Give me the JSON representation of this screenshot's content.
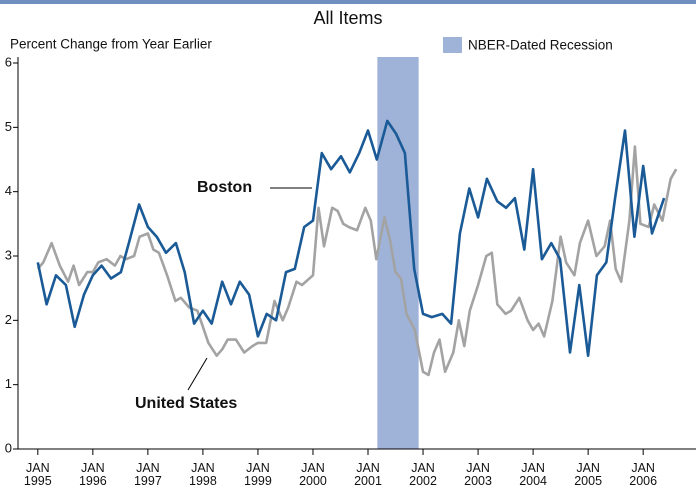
{
  "chart_data": {
    "type": "line",
    "title": "All Items",
    "y_label": "Percent Change from Year Earlier",
    "recession": {
      "label": "NBER-Dated Recession",
      "start": 2001.17,
      "end": 2001.92,
      "color": "#9fb3d9"
    },
    "xlim": [
      1994.64,
      2006.96
    ],
    "xticks": [
      {
        "value": 1995,
        "label": "JAN 1995"
      },
      {
        "value": 1996,
        "label": "JAN 1996"
      },
      {
        "value": 1997,
        "label": "JAN 1997"
      },
      {
        "value": 1998,
        "label": "JAN 1998"
      },
      {
        "value": 1999,
        "label": "JAN 1999"
      },
      {
        "value": 2000,
        "label": "JAN 2000"
      },
      {
        "value": 2001,
        "label": "JAN 2001"
      },
      {
        "value": 2002,
        "label": "JAN 2002"
      },
      {
        "value": 2003,
        "label": "JAN 2003"
      },
      {
        "value": 2004,
        "label": "JAN 2004"
      },
      {
        "value": 2005,
        "label": "JAN 2005"
      },
      {
        "value": 2006,
        "label": "JAN 2006"
      }
    ],
    "ylim": [
      0,
      6
    ],
    "yticks": [
      0,
      1,
      2,
      3,
      4,
      5,
      6
    ],
    "series": [
      {
        "name": "United States",
        "color": "#a3a3a3",
        "x": [
          1995.0,
          1995.1,
          1995.25,
          1995.4,
          1995.55,
          1995.65,
          1995.75,
          1995.9,
          1996.0,
          1996.1,
          1996.25,
          1996.4,
          1996.5,
          1996.6,
          1996.75,
          1996.85,
          1997.0,
          1997.1,
          1997.2,
          1997.35,
          1997.5,
          1997.6,
          1997.75,
          1997.9,
          1998.0,
          1998.1,
          1998.25,
          1998.35,
          1998.45,
          1998.6,
          1998.75,
          1998.9,
          1999.0,
          1999.15,
          1999.3,
          1999.45,
          1999.55,
          1999.7,
          1999.8,
          2000.0,
          2000.1,
          2000.2,
          2000.35,
          2000.45,
          2000.55,
          2000.65,
          2000.8,
          2000.95,
          2001.05,
          2001.15,
          2001.3,
          2001.4,
          2001.5,
          2001.6,
          2001.7,
          2001.85,
          2002.0,
          2002.1,
          2002.2,
          2002.3,
          2002.4,
          2002.55,
          2002.65,
          2002.75,
          2002.85,
          2003.0,
          2003.15,
          2003.25,
          2003.35,
          2003.5,
          2003.6,
          2003.75,
          2003.9,
          2004.0,
          2004.1,
          2004.2,
          2004.35,
          2004.5,
          2004.6,
          2004.75,
          2004.85,
          2005.0,
          2005.15,
          2005.3,
          2005.4,
          2005.5,
          2005.6,
          2005.75,
          2005.85,
          2005.95,
          2006.1,
          2006.2,
          2006.35,
          2006.5,
          2006.6
        ],
        "values": [
          2.8,
          2.9,
          3.2,
          2.85,
          2.6,
          2.85,
          2.55,
          2.75,
          2.75,
          2.9,
          2.95,
          2.85,
          3.0,
          2.95,
          3.0,
          3.3,
          3.35,
          3.1,
          3.05,
          2.7,
          2.3,
          2.35,
          2.2,
          2.15,
          1.9,
          1.65,
          1.45,
          1.55,
          1.7,
          1.7,
          1.5,
          1.6,
          1.65,
          1.65,
          2.3,
          2.0,
          2.2,
          2.6,
          2.55,
          2.7,
          3.75,
          3.15,
          3.75,
          3.7,
          3.5,
          3.45,
          3.4,
          3.75,
          3.55,
          2.95,
          3.6,
          3.25,
          2.75,
          2.65,
          2.1,
          1.85,
          1.2,
          1.15,
          1.5,
          1.7,
          1.2,
          1.5,
          2.0,
          1.6,
          2.15,
          2.55,
          3.0,
          3.05,
          2.25,
          2.1,
          2.15,
          2.35,
          2.0,
          1.85,
          1.95,
          1.75,
          2.3,
          3.3,
          2.9,
          2.7,
          3.2,
          3.55,
          3.0,
          3.15,
          3.55,
          2.8,
          2.6,
          3.55,
          4.7,
          3.5,
          3.45,
          3.8,
          3.55,
          4.2,
          4.35
        ]
      },
      {
        "name": "Boston",
        "color": "#1a5a96",
        "x": [
          1995.0,
          1995.16,
          1995.33,
          1995.51,
          1995.67,
          1995.84,
          1996.0,
          1996.16,
          1996.33,
          1996.51,
          1996.67,
          1996.84,
          1997.0,
          1997.16,
          1997.33,
          1997.51,
          1997.67,
          1997.84,
          1998.0,
          1998.16,
          1998.35,
          1998.51,
          1998.67,
          1998.84,
          1999.0,
          1999.16,
          1999.33,
          1999.51,
          1999.67,
          1999.84,
          2000.0,
          2000.16,
          2000.33,
          2000.51,
          2000.67,
          2000.84,
          2001.0,
          2001.16,
          2001.35,
          2001.51,
          2001.67,
          2001.84,
          2002.0,
          2002.16,
          2002.35,
          2002.51,
          2002.67,
          2002.84,
          2003.0,
          2003.16,
          2003.35,
          2003.51,
          2003.67,
          2003.84,
          2004.0,
          2004.16,
          2004.33,
          2004.49,
          2004.67,
          2004.84,
          2005.0,
          2005.16,
          2005.33,
          2005.49,
          2005.67,
          2005.84,
          2006.0,
          2006.16,
          2006.38
        ],
        "values": [
          2.9,
          2.25,
          2.7,
          2.55,
          1.9,
          2.4,
          2.7,
          2.85,
          2.65,
          2.75,
          3.25,
          3.8,
          3.45,
          3.3,
          3.05,
          3.2,
          2.75,
          1.95,
          2.15,
          1.95,
          2.6,
          2.25,
          2.6,
          2.4,
          1.75,
          2.1,
          2.0,
          2.75,
          2.8,
          3.45,
          3.55,
          4.6,
          4.35,
          4.55,
          4.3,
          4.6,
          4.95,
          4.5,
          5.1,
          4.9,
          4.6,
          2.8,
          2.1,
          2.05,
          2.1,
          1.95,
          3.35,
          4.05,
          3.6,
          4.2,
          3.85,
          3.75,
          3.9,
          3.1,
          4.35,
          2.95,
          3.2,
          2.95,
          1.5,
          2.55,
          1.45,
          2.7,
          2.9,
          3.9,
          4.95,
          3.3,
          4.4,
          3.35,
          3.9
        ]
      }
    ]
  }
}
